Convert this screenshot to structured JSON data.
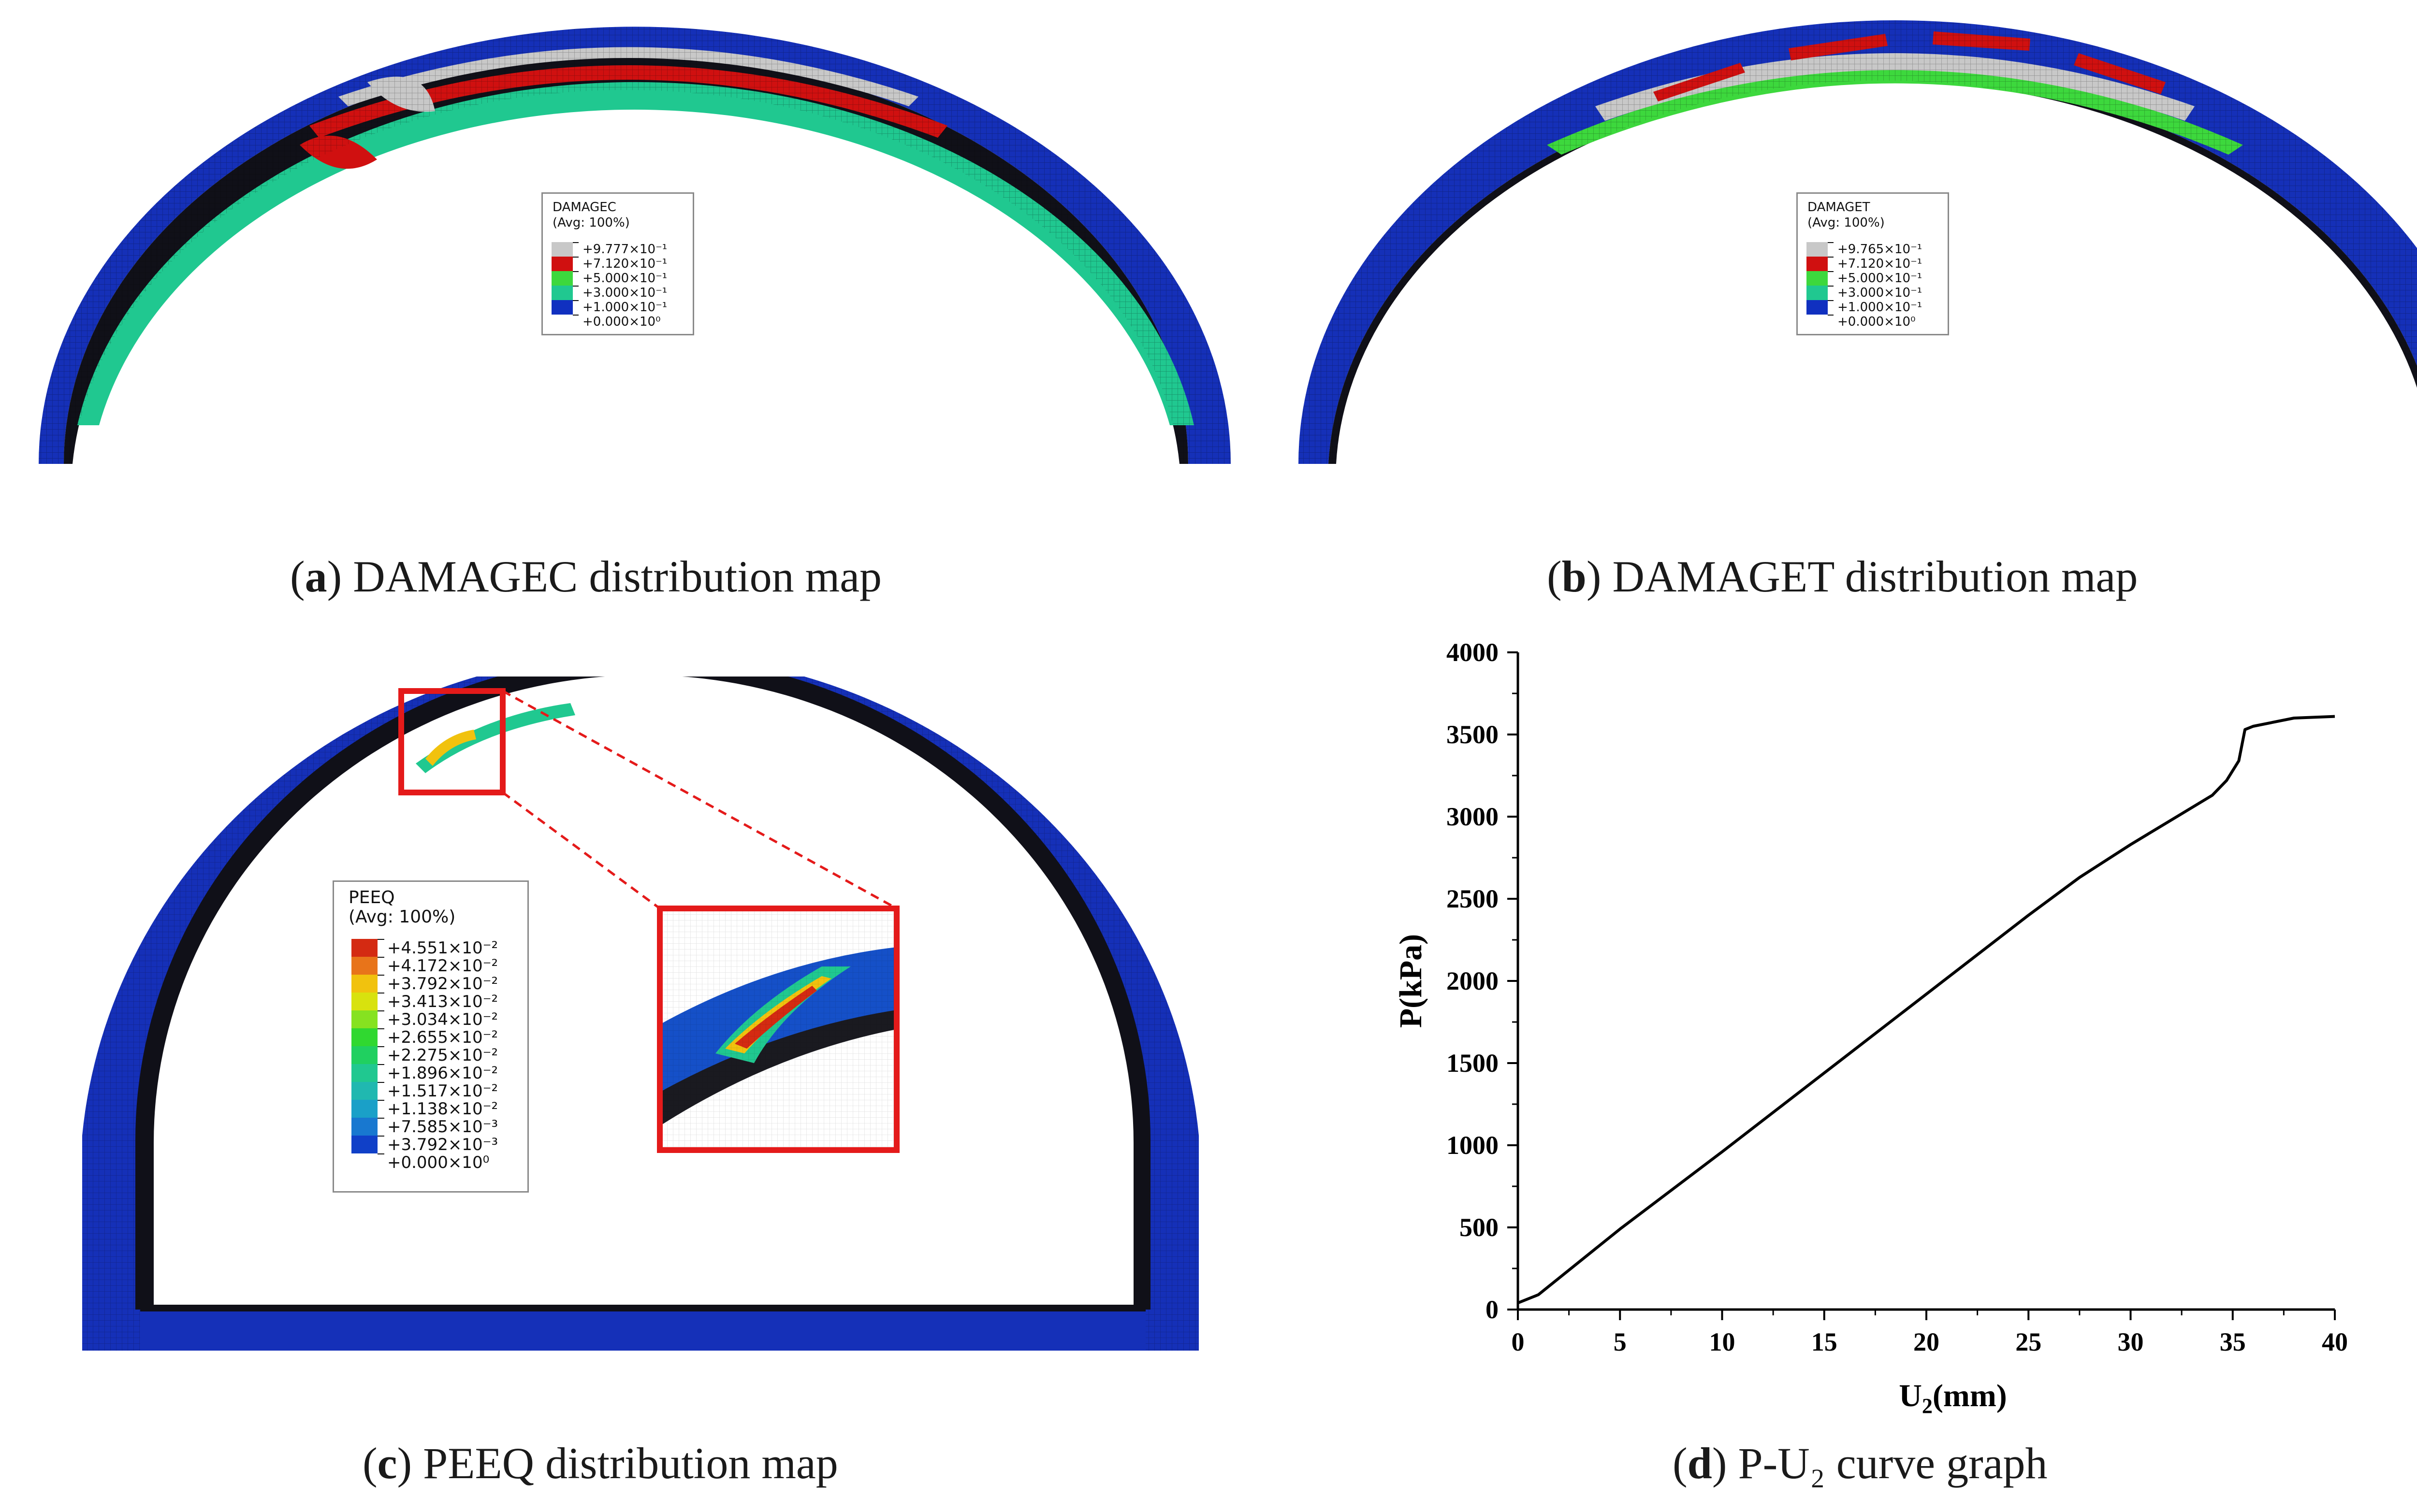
{
  "panels": {
    "a": {
      "caption_letter": "a",
      "caption_text": " DAMAGEC distribution map",
      "legend": {
        "title": "DAMAGEC",
        "subtitle": "(Avg: 100%)",
        "entries": [
          "+9.777×10⁻¹",
          "+7.120×10⁻¹",
          "+5.000×10⁻¹",
          "+3.000×10⁻¹",
          "+1.000×10⁻¹",
          "+0.000×10⁰"
        ],
        "colors": [
          "#c8c8c8",
          "#d01010",
          "#3dd83d",
          "#20c890",
          "#1030c0"
        ]
      }
    },
    "b": {
      "caption_letter": "b",
      "caption_text": " DAMAGET distribution map",
      "legend": {
        "title": "DAMAGET",
        "subtitle": "(Avg: 100%)",
        "entries": [
          "+9.765×10⁻¹",
          "+7.120×10⁻¹",
          "+5.000×10⁻¹",
          "+3.000×10⁻¹",
          "+1.000×10⁻¹",
          "+0.000×10⁰"
        ],
        "colors": [
          "#c8c8c8",
          "#d01010",
          "#3dd83d",
          "#20c890",
          "#1030c0"
        ]
      }
    },
    "c": {
      "caption_letter": "c",
      "caption_text": " PEEQ distribution map",
      "legend": {
        "title": "PEEQ",
        "subtitle": "(Avg: 100%)",
        "entries": [
          "+4.551×10⁻²",
          "+4.172×10⁻²",
          "+3.792×10⁻²",
          "+3.413×10⁻²",
          "+3.034×10⁻²",
          "+2.655×10⁻²",
          "+2.275×10⁻²",
          "+1.896×10⁻²",
          "+1.517×10⁻²",
          "+1.138×10⁻²",
          "+7.585×10⁻³",
          "+3.792×10⁻³",
          "+0.000×10⁰"
        ],
        "colors": [
          "#d42a12",
          "#e8741a",
          "#f1c20e",
          "#d8e20e",
          "#86e220",
          "#30d830",
          "#20d060",
          "#20c890",
          "#20b8b0",
          "#1aa0c8",
          "#1878d0",
          "#1040c8"
        ]
      }
    },
    "d": {
      "caption_letter": "d",
      "caption_text": " P-U₂ curve graph"
    }
  },
  "chart_data": {
    "type": "line",
    "title": "",
    "xlabel": "U₂(mm)",
    "ylabel": "P(kPa)",
    "xlim": [
      0,
      40
    ],
    "ylim": [
      0,
      4000
    ],
    "xticks": [
      0,
      5,
      10,
      15,
      20,
      25,
      30,
      35,
      40
    ],
    "yticks": [
      0,
      500,
      1000,
      1500,
      2000,
      2500,
      3000,
      3500,
      4000
    ],
    "series": [
      {
        "name": "P-U2",
        "x": [
          0,
          1,
          2,
          5,
          10,
          15,
          20,
          25,
          27.5,
          30,
          32,
          34,
          34.7,
          35.3,
          35.6,
          36,
          38,
          40
        ],
        "y": [
          40,
          90,
          190,
          490,
          960,
          1440,
          1920,
          2400,
          2630,
          2830,
          2980,
          3130,
          3220,
          3340,
          3530,
          3550,
          3600,
          3610
        ]
      }
    ]
  }
}
